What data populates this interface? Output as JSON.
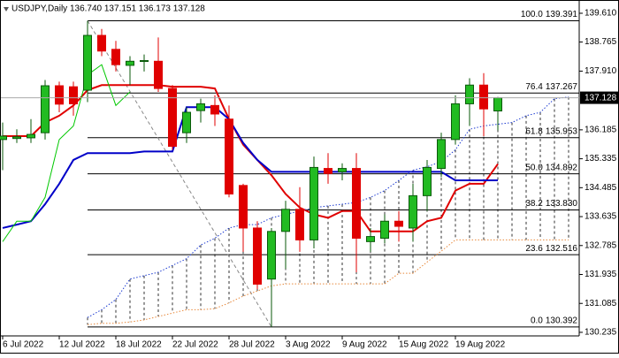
{
  "chart_data": {
    "type": "candlestick",
    "title": "USDJPY,Daily  136.740 137.151 136.173 137.128",
    "categories": [
      "6 Jul 2022",
      null,
      null,
      null,
      "12 Jul 2022",
      null,
      null,
      null,
      "18 Jul 2022",
      null,
      null,
      null,
      "22 Jul 2022",
      null,
      null,
      null,
      "28 Jul 2022",
      null,
      null,
      null,
      "3 Aug 2022",
      null,
      null,
      null,
      "9 Aug 2022",
      null,
      null,
      null,
      "15 Aug 2022",
      null,
      null,
      null,
      "19 Aug 2022",
      null,
      null,
      null,
      null,
      null,
      null,
      null,
      null
    ],
    "open": [
      135.9,
      135.93,
      135.95,
      136.1,
      137.48,
      137.45,
      137.35,
      138.96,
      138.55,
      138.08,
      138.2,
      138.2,
      137.4,
      136.1,
      136.75,
      136.9,
      136.5,
      134.55,
      133.3,
      131.8,
      133.2,
      133.85,
      132.95,
      135.05,
      134.95,
      135.05,
      132.9,
      133.0,
      133.5,
      133.3,
      134.25,
      135.05,
      135.9,
      136.95,
      137.5,
      136.74,
      null,
      null,
      null,
      null,
      null
    ],
    "high": [
      136.4,
      136.2,
      136.5,
      137.65,
      137.6,
      137.6,
      139.391,
      139.15,
      138.8,
      138.35,
      138.4,
      138.9,
      137.5,
      136.85,
      137.1,
      137.2,
      136.9,
      134.6,
      133.5,
      133.3,
      134.1,
      134.5,
      135.4,
      135.5,
      135.2,
      135.5,
      133.3,
      133.7,
      133.8,
      134.6,
      135.3,
      136.1,
      137.2,
      137.7,
      137.85,
      137.151,
      null,
      null,
      null,
      null,
      null
    ],
    "low": [
      135.0,
      135.8,
      135.8,
      135.9,
      136.7,
      136.6,
      137.0,
      138.35,
      137.9,
      137.5,
      137.9,
      137.3,
      135.6,
      135.8,
      136.4,
      136.3,
      134.2,
      132.6,
      131.5,
      130.392,
      132.1,
      132.6,
      132.7,
      134.6,
      134.7,
      132.0,
      132.6,
      132.85,
      132.9,
      132.9,
      133.8,
      134.8,
      135.75,
      136.3,
      136.0,
      136.173,
      null,
      null,
      null,
      null,
      null
    ],
    "close": [
      136.0,
      135.98,
      136.05,
      137.48,
      136.94,
      136.95,
      138.96,
      138.5,
      138.1,
      138.2,
      138.22,
      137.4,
      135.7,
      136.7,
      136.95,
      136.65,
      134.3,
      133.3,
      131.65,
      133.2,
      133.85,
      132.95,
      135.08,
      134.9,
      135.05,
      133.0,
      133.05,
      133.5,
      133.35,
      134.25,
      135.08,
      135.9,
      136.95,
      137.5,
      136.8,
      137.128,
      null,
      null,
      null,
      null,
      null
    ],
    "up_color": "#22bb22",
    "up_edge": "#0a5a0a",
    "down_color": "#e00000",
    "series": [
      {
        "color": "#e00000",
        "width": 2,
        "style": "solid",
        "values": [
          136.0,
          136.0,
          136.0,
          136.4,
          136.6,
          136.9,
          137.35,
          137.5,
          137.5,
          137.5,
          137.5,
          137.5,
          137.45,
          137.45,
          137.45,
          137.4,
          136.5,
          135.75,
          135.3,
          134.85,
          134.3,
          133.9,
          133.7,
          133.6,
          133.8,
          133.8,
          133.2,
          133.2,
          133.2,
          133.2,
          133.5,
          133.6,
          134.4,
          134.6,
          134.6,
          135.18,
          null,
          null,
          null,
          null,
          null
        ]
      },
      {
        "color": "#0000c8",
        "width": 2,
        "style": "solid",
        "values": [
          133.3,
          133.4,
          133.5,
          134.0,
          134.6,
          135.3,
          135.5,
          135.5,
          135.5,
          135.5,
          135.55,
          135.55,
          135.55,
          136.85,
          136.85,
          136.85,
          136.5,
          135.8,
          135.3,
          134.95,
          134.95,
          134.95,
          134.95,
          134.95,
          134.95,
          134.95,
          134.95,
          134.95,
          134.95,
          134.95,
          134.95,
          134.95,
          134.7,
          134.7,
          134.7,
          134.7,
          null,
          null,
          null,
          null,
          null
        ]
      },
      {
        "color": "#00c800",
        "width": 1,
        "style": "solid",
        "values": [
          132.9,
          133.5,
          133.5,
          134.2,
          135.9,
          136.3,
          137.8,
          138.1,
          136.9,
          137.3,
          null,
          null,
          null,
          null,
          null,
          null,
          null,
          null,
          null,
          null,
          null,
          null,
          null,
          null,
          null,
          null,
          null,
          null,
          null,
          null,
          null,
          null,
          null,
          null,
          null,
          null,
          null,
          null,
          null,
          null,
          null
        ]
      },
      {
        "color": "#1e3cd2",
        "width": 1,
        "style": "dotted",
        "values": [
          null,
          null,
          null,
          null,
          null,
          null,
          130.67,
          130.9,
          131.2,
          131.8,
          131.9,
          132.0,
          132.2,
          132.4,
          132.8,
          133.0,
          133.3,
          133.4,
          133.4,
          133.6,
          133.7,
          133.8,
          133.9,
          133.95,
          134.0,
          134.05,
          134.2,
          134.4,
          134.7,
          135.0,
          135.1,
          135.25,
          135.6,
          136.2,
          136.3,
          136.35,
          136.4,
          136.6,
          136.7,
          137.1,
          137.15
        ]
      },
      {
        "color": "#e8883a",
        "width": 1,
        "style": "dotted",
        "values": [
          null,
          null,
          null,
          null,
          null,
          null,
          130.46,
          130.5,
          130.5,
          130.54,
          130.6,
          130.7,
          130.8,
          130.9,
          130.9,
          130.93,
          131.1,
          131.3,
          131.45,
          131.6,
          131.66,
          131.66,
          131.66,
          131.66,
          131.66,
          131.66,
          131.66,
          131.66,
          131.97,
          131.97,
          132.3,
          132.62,
          132.95,
          132.95,
          132.95,
          132.95,
          132.95,
          132.95,
          132.95,
          132.95,
          132.95
        ]
      }
    ],
    "cloud": true,
    "fibonacci": [
      {
        "level": "100.0",
        "value": 139.391
      },
      {
        "level": "76.4",
        "value": 137.267
      },
      {
        "level": "61.8",
        "value": 135.953
      },
      {
        "level": "50.0",
        "value": 134.892
      },
      {
        "level": "38.2",
        "value": 133.83,
        "value_label": "133.830"
      },
      {
        "level": "23.6",
        "value": 132.516
      },
      {
        "level": "0.0",
        "value": 130.392
      }
    ],
    "ylim": [
      130.13,
      139.87
    ],
    "yticks": [
      130.235,
      131.085,
      131.935,
      132.785,
      133.635,
      134.485,
      135.335,
      136.185,
      {
        "value": 137.91,
        "label": "137.910"
      },
      138.765,
      {
        "value": 139.61,
        "label": "139.610"
      }
    ],
    "grid": false
  }
}
